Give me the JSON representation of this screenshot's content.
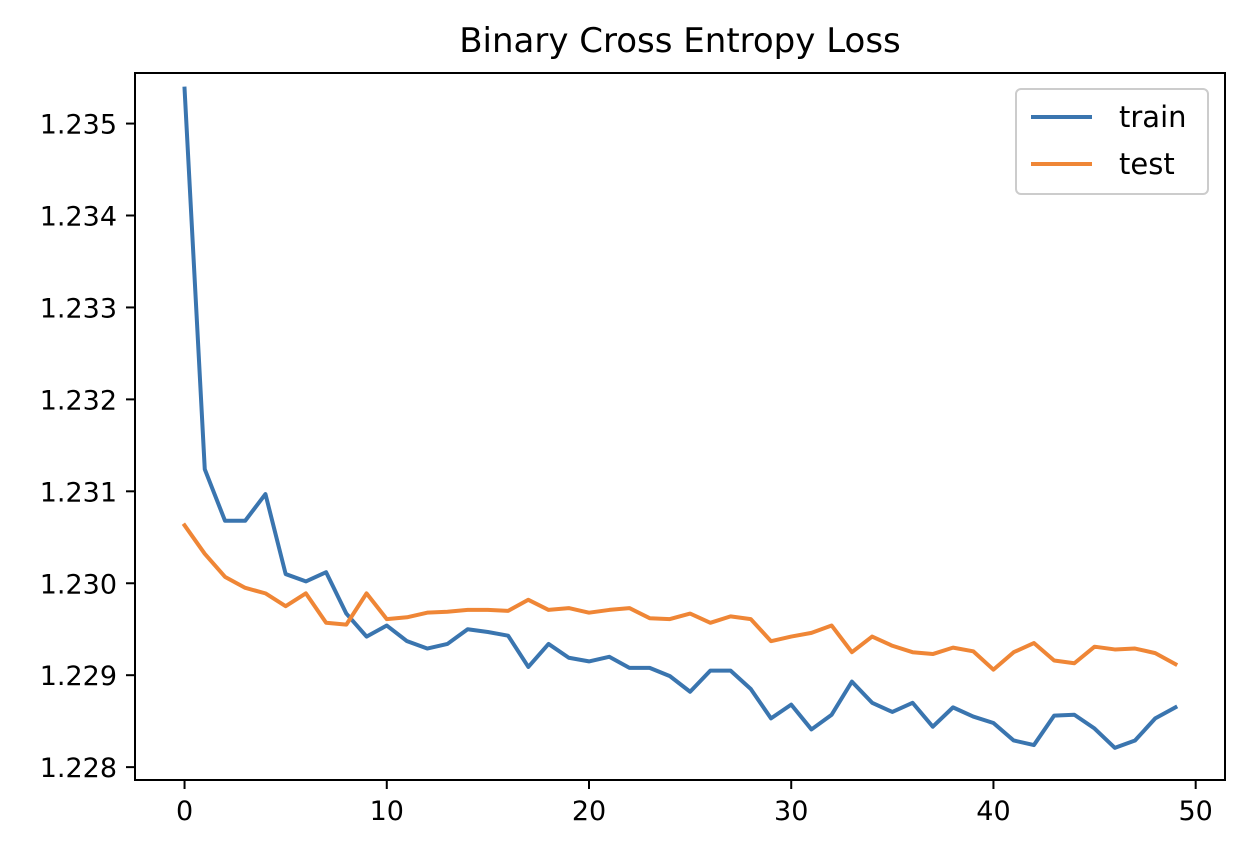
{
  "chart_data": {
    "type": "line",
    "title": "Binary Cross Entropy Loss",
    "xlabel": "",
    "ylabel": "",
    "xlim": [
      -2.45,
      51.45
    ],
    "ylim": [
      1.22786,
      1.23555
    ],
    "x_ticks": [
      0,
      10,
      20,
      30,
      40,
      50
    ],
    "x_tick_labels": [
      "0",
      "10",
      "20",
      "30",
      "40",
      "50"
    ],
    "y_ticks": [
      1.228,
      1.229,
      1.23,
      1.231,
      1.232,
      1.233,
      1.234,
      1.235
    ],
    "y_tick_labels": [
      "1.228",
      "1.229",
      "1.230",
      "1.231",
      "1.232",
      "1.233",
      "1.234",
      "1.235"
    ],
    "grid": false,
    "legend_position": "top-right",
    "x": [
      0,
      1,
      2,
      3,
      4,
      5,
      6,
      7,
      8,
      9,
      10,
      11,
      12,
      13,
      14,
      15,
      16,
      17,
      18,
      19,
      20,
      21,
      22,
      23,
      24,
      25,
      26,
      27,
      28,
      29,
      30,
      31,
      32,
      33,
      34,
      35,
      36,
      37,
      38,
      39,
      40,
      41,
      42,
      43,
      44,
      45,
      46,
      47,
      48,
      49
    ],
    "series": [
      {
        "name": "train",
        "color": "#3a75af",
        "values": [
          1.23538,
          1.23124,
          1.23068,
          1.23068,
          1.23097,
          1.2301,
          1.23002,
          1.23012,
          1.22967,
          1.22942,
          1.22954,
          1.22937,
          1.22929,
          1.22934,
          1.2295,
          1.22947,
          1.22943,
          1.22909,
          1.22934,
          1.22919,
          1.22915,
          1.2292,
          1.22908,
          1.22908,
          1.22899,
          1.22882,
          1.22905,
          1.22905,
          1.22885,
          1.22853,
          1.22868,
          1.22841,
          1.22857,
          1.22893,
          1.2287,
          1.2286,
          1.2287,
          1.22844,
          1.22865,
          1.22855,
          1.22848,
          1.22829,
          1.22824,
          1.22856,
          1.22857,
          1.22842,
          1.22821,
          1.22829,
          1.22853,
          1.22865
        ]
      },
      {
        "name": "test",
        "color": "#ef8636",
        "values": [
          1.23063,
          1.23032,
          1.23007,
          1.22995,
          1.22989,
          1.22975,
          1.22989,
          1.22957,
          1.22955,
          1.22989,
          1.22961,
          1.22963,
          1.22968,
          1.22969,
          1.22971,
          1.22971,
          1.2297,
          1.22982,
          1.22971,
          1.22973,
          1.22968,
          1.22971,
          1.22973,
          1.22962,
          1.22961,
          1.22967,
          1.22957,
          1.22964,
          1.22961,
          1.22937,
          1.22942,
          1.22946,
          1.22954,
          1.22925,
          1.22942,
          1.22932,
          1.22925,
          1.22923,
          1.2293,
          1.22926,
          1.22906,
          1.22925,
          1.22935,
          1.22916,
          1.22913,
          1.22931,
          1.22928,
          1.22929,
          1.22924,
          1.22912
        ]
      }
    ]
  }
}
